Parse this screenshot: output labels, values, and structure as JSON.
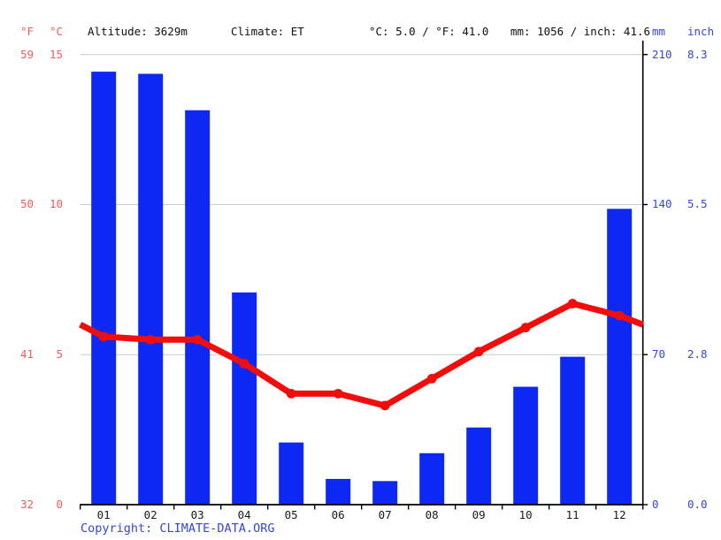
{
  "header": {
    "unit_f": "°F",
    "unit_c": "°C",
    "altitude": "Altitude: 3629m",
    "climate": "Climate: ET",
    "avg_temp": "°C: 5.0 / °F: 41.0",
    "precip_total": "mm: 1056 / inch: 41.6",
    "unit_mm": "mm",
    "unit_inch": "inch"
  },
  "axes": {
    "left": {
      "fahrenheit": [
        "59",
        "50",
        "41",
        "32"
      ],
      "celsius": [
        "15",
        "10",
        "5",
        "0"
      ]
    },
    "right": {
      "mm": [
        "210",
        "140",
        "70",
        "0"
      ],
      "inch": [
        "8.3",
        "5.5",
        "2.8",
        "0.0"
      ]
    }
  },
  "footer": {
    "copyright_label": "Copyright: ",
    "copyright_link": "CLIMATE-DATA.ORG"
  },
  "colors": {
    "bar_blue": "#0d28f2",
    "line_red": "#f20d0d",
    "red_label": "#f05c5c",
    "blue_label": "#3546de",
    "grid_gray": "#cccccc",
    "axis_black": "#000000"
  },
  "chart_data": {
    "type": "bar",
    "title": "Climate chart: altitude 3629m, climate ET",
    "categories": [
      "01",
      "02",
      "03",
      "04",
      "05",
      "06",
      "07",
      "08",
      "09",
      "10",
      "11",
      "12"
    ],
    "series": [
      {
        "name": "Precipitation",
        "type": "bar",
        "unit": "mm",
        "values": [
          202,
          201,
          184,
          99,
          29,
          12,
          11,
          24,
          36,
          55,
          69,
          138
        ],
        "axis": "right",
        "ylim": [
          0,
          210
        ],
        "right_axis_ticks_mm": [
          210,
          140,
          70,
          0
        ],
        "right_axis_ticks_inch": [
          8.3,
          5.5,
          2.8,
          0.0
        ]
      },
      {
        "name": "Temperature",
        "type": "line",
        "unit": "°C",
        "values": [
          5.6,
          5.5,
          5.5,
          4.7,
          3.7,
          3.7,
          3.3,
          4.2,
          5.1,
          5.9,
          6.7,
          6.3
        ],
        "edge_left": 6.0,
        "edge_right": 6.0,
        "axis": "left",
        "ylim": [
          0,
          15
        ],
        "left_axis_ticks_c": [
          15,
          10,
          5,
          0
        ],
        "left_axis_ticks_f": [
          59,
          50,
          41,
          32
        ]
      }
    ],
    "xlabel": "",
    "ylabel_left": "°C / °F",
    "ylabel_right": "mm / inch",
    "grid": true,
    "legend_position": "none"
  }
}
